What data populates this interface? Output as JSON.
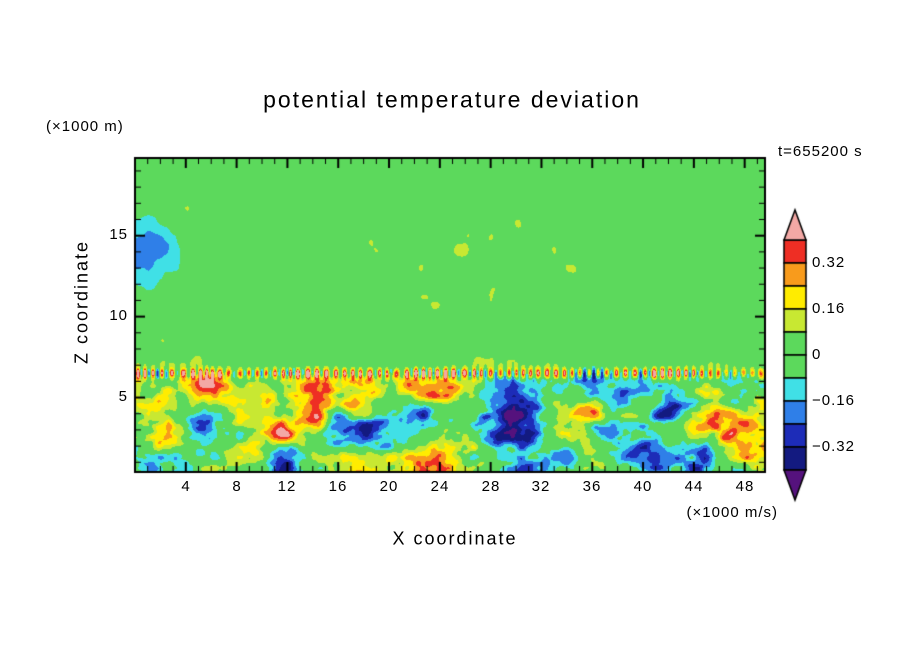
{
  "chart_data": {
    "type": "heatmap",
    "title": "potential temperature deviation",
    "xlabel": "X coordinate",
    "ylabel": "Z coordinate",
    "y_unit_label": "(×1000 m)",
    "x_unit_label": "(×1000 m/s)",
    "time_label": "t=655200 s",
    "x_range": [
      0,
      49.6
    ],
    "z_range": [
      0.4,
      19.8
    ],
    "x_ticks": [
      4,
      8,
      12,
      16,
      20,
      24,
      28,
      32,
      36,
      40,
      44,
      48
    ],
    "x_minor_step": 1,
    "z_ticks": [
      5,
      10,
      15
    ],
    "z_minor_step": 1,
    "contour_levels": [
      -0.4,
      -0.32,
      -0.24,
      -0.16,
      -0.08,
      0,
      0.08,
      0.16,
      0.24,
      0.32,
      0.4
    ],
    "band_colors_low_to_high": [
      "#55127d",
      "#131a80",
      "#1d2cb8",
      "#2f7fe8",
      "#40e0e6",
      "#5cd95c",
      "#5cd95c",
      "#c8e832",
      "#ffec00",
      "#f89b1c",
      "#ee2e24",
      "#f3a8a5"
    ],
    "colorbar_tick_labels": [
      "0.32",
      "0.16",
      "0",
      "−0.16",
      "−0.32"
    ],
    "colorbar_tick_values": [
      0.32,
      0.16,
      0,
      -0.16,
      -0.32
    ],
    "interface_height": 6.5,
    "frame_color": "#000000",
    "background": "#ffffff",
    "field_summary": "Quiescent near-zero (green) layer above z≈6.5 km with weak cool cyan patches; sharp interface with fine-scale alternating warm/cool striations across the full width; turbulent boundary layer below with strong warm eddies (yellow/orange/red, pink cores >0.4) and cold eddies (blue/navy, purple cores <-0.4)."
  }
}
